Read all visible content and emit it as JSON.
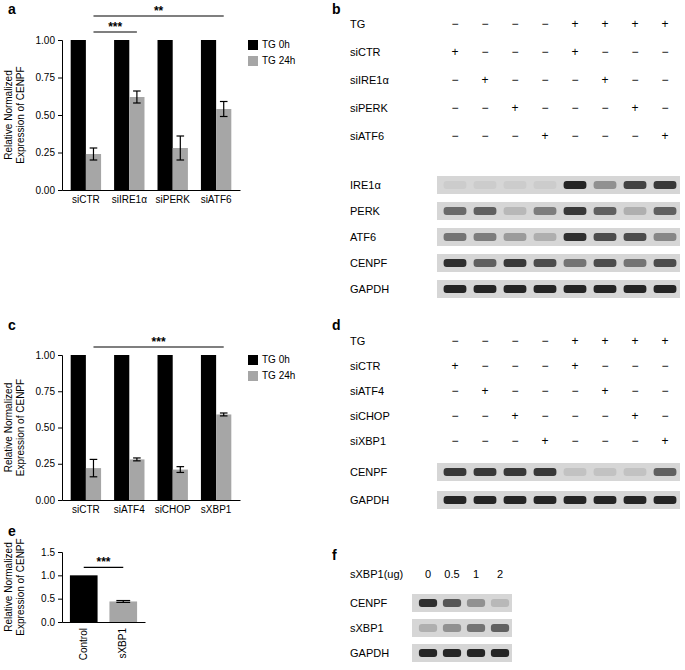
{
  "chart_data": [
    {
      "type": "bar",
      "panel_label": "a",
      "y_label": [
        "Relative Normalized",
        "Expression of CENPF"
      ],
      "categories": [
        "siCTR",
        "siIRE1α",
        "siPERK",
        "siATF6"
      ],
      "series": [
        {
          "name": "TG 0h",
          "color": "#000000",
          "values": [
            1,
            1,
            1,
            1
          ]
        },
        {
          "name": "TG 24h",
          "color": "#a6a6a6",
          "values": [
            0.24,
            0.62,
            0.28,
            0.54
          ],
          "errors": [
            0.04,
            0.04,
            0.08,
            0.05
          ]
        }
      ],
      "ylim": [
        0,
        1
      ],
      "yticks": [
        {
          "value": 0,
          "label": "0.00"
        },
        0.25,
        {
          "value": 0.5,
          "label": "0.50"
        },
        0.75,
        {
          "value": 1,
          "label": "1.00"
        }
      ],
      "legend": "right",
      "annotations": [
        {
          "text": "***",
          "from": 0,
          "to": 1
        },
        {
          "text": "**",
          "from": 0,
          "to": 3
        }
      ]
    },
    {
      "type": "blot",
      "panel_label": "b",
      "rows": [
        {
          "label": "TG",
          "marks": [
            "−",
            "−",
            "−",
            "−",
            "+",
            "+",
            "+",
            "+"
          ]
        },
        {
          "label": "siCTR",
          "marks": [
            "+",
            "−",
            "−",
            "−",
            "+",
            "−",
            "−",
            "−"
          ]
        },
        {
          "label": "siIRE1α",
          "marks": [
            "−",
            "+",
            "−",
            "−",
            "−",
            "+",
            "−",
            "−"
          ]
        },
        {
          "label": "siPERK",
          "marks": [
            "−",
            "−",
            "+",
            "−",
            "−",
            "−",
            "+",
            "−"
          ]
        },
        {
          "label": "siATF6",
          "marks": [
            "−",
            "−",
            "−",
            "+",
            "−",
            "−",
            "−",
            "+"
          ]
        }
      ],
      "bands": [
        {
          "name": "IRE1α",
          "intensity": [
            0.05,
            0.05,
            0.05,
            0.05,
            0.9,
            0.35,
            0.75,
            0.8
          ]
        },
        {
          "name": "PERK",
          "intensity": [
            0.55,
            0.6,
            0.15,
            0.45,
            0.8,
            0.6,
            0.2,
            0.6
          ]
        },
        {
          "name": "ATF6",
          "intensity": [
            0.5,
            0.45,
            0.3,
            0.2,
            0.85,
            0.7,
            0.7,
            0.4
          ]
        },
        {
          "name": "CENPF",
          "intensity": [
            0.85,
            0.6,
            0.8,
            0.7,
            0.5,
            0.7,
            0.5,
            0.7
          ]
        },
        {
          "name": "GAPDH",
          "intensity": [
            0.9,
            0.9,
            0.9,
            0.9,
            0.9,
            0.9,
            0.9,
            0.9
          ]
        }
      ]
    },
    {
      "type": "bar",
      "panel_label": "c",
      "y_label": [
        "Relative Normalized",
        "Expression of CENPF"
      ],
      "categories": [
        "siCTR",
        "siATF4",
        "siCHOP",
        "sXBP1"
      ],
      "series": [
        {
          "name": "TG 0h",
          "color": "#000000",
          "values": [
            1,
            1,
            1,
            1
          ]
        },
        {
          "name": "TG 24h",
          "color": "#a6a6a6",
          "values": [
            0.22,
            0.28,
            0.21,
            0.59
          ],
          "errors": [
            0.06,
            0.01,
            0.02,
            0.01
          ]
        }
      ],
      "ylim": [
        0,
        1
      ],
      "yticks": [
        {
          "value": 0,
          "label": "0.00"
        },
        0.25,
        {
          "value": 0.5,
          "label": "0.50"
        },
        0.75,
        {
          "value": 1,
          "label": "1.00"
        }
      ],
      "legend": "right",
      "annotations": [
        {
          "text": "***",
          "from": 0,
          "to": 3
        }
      ]
    },
    {
      "type": "blot",
      "panel_label": "d",
      "rows": [
        {
          "label": "TG",
          "marks": [
            "−",
            "−",
            "−",
            "−",
            "+",
            "+",
            "+",
            "+"
          ]
        },
        {
          "label": "siCTR",
          "marks": [
            "+",
            "−",
            "−",
            "−",
            "+",
            "−",
            "−",
            "−"
          ]
        },
        {
          "label": "siATF4",
          "marks": [
            "−",
            "+",
            "−",
            "−",
            "−",
            "+",
            "−",
            "−"
          ]
        },
        {
          "label": "siCHOP",
          "marks": [
            "−",
            "−",
            "+",
            "−",
            "−",
            "−",
            "+",
            "−"
          ]
        },
        {
          "label": "siXBP1",
          "marks": [
            "−",
            "−",
            "−",
            "+",
            "−",
            "−",
            "−",
            "+"
          ]
        }
      ],
      "bands": [
        {
          "name": "CENPF",
          "intensity": [
            0.8,
            0.8,
            0.8,
            0.8,
            0.1,
            0.1,
            0.1,
            0.6
          ]
        },
        {
          "name": "GAPDH",
          "intensity": [
            0.9,
            0.9,
            0.9,
            0.9,
            0.9,
            0.9,
            0.9,
            0.9
          ]
        }
      ]
    },
    {
      "type": "bar",
      "panel_label": "e",
      "y_label": [
        "Relative Normalized",
        "Expression of CENPF"
      ],
      "categories": [
        "Control",
        "sXBP1"
      ],
      "values": [
        1,
        0.44
      ],
      "errors": [
        null,
        0.02
      ],
      "colors": [
        "#000000",
        "#a6a6a6"
      ],
      "ylim": [
        0,
        1.5
      ],
      "yticks": [
        {
          "value": 0,
          "label": "0.0"
        },
        0.5,
        {
          "value": 1,
          "label": "1.0"
        },
        1.5
      ],
      "annotations": [
        {
          "text": "***",
          "from": 0,
          "to": 1
        }
      ]
    },
    {
      "type": "blot",
      "panel_label": "f",
      "header": "sXBP1(ug)",
      "lanes": [
        0,
        0.5,
        1,
        2
      ],
      "bands": [
        {
          "name": "CENPF",
          "intensity": [
            0.85,
            0.65,
            0.35,
            0.15
          ]
        },
        {
          "name": "sXBP1",
          "intensity": [
            0.2,
            0.35,
            0.5,
            0.6
          ]
        },
        {
          "name": "GAPDH",
          "intensity": [
            0.9,
            0.9,
            0.9,
            0.9
          ]
        }
      ]
    }
  ]
}
